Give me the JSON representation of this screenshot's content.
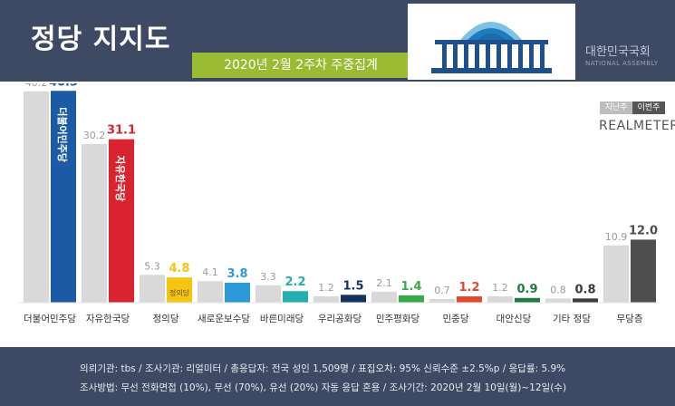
{
  "header": {
    "title": "정당 지지도",
    "subtitle": "2020년 2월 2주차 주중집계"
  },
  "assembly": {
    "name_ko": "대한민국국회",
    "name_en": "NATIONAL ASSEMBLY"
  },
  "legend": {
    "previous": "지난주",
    "current": "이번주",
    "brand": "REALMETER"
  },
  "colors": {
    "header_bg": "#3e4a64",
    "subtitle_bg": "#9abc32",
    "previous_bar": "#d9d9d9",
    "democratic": "#1c5aa6",
    "liberty_korea": "#d9232f",
    "justice": "#f5c512",
    "new_conservative": "#2b9ad6",
    "bareun_future": "#24aeb2",
    "our_republican": "#14335e",
    "minju_peace": "#3aa94a",
    "minjung": "#e3482b",
    "alternative_new": "#1f7a3f",
    "other": "#3a3a3a",
    "independent": "#4e4e4e"
  },
  "chart_data": {
    "type": "bar",
    "categories": [
      "더불어민주당",
      "자유한국당",
      "정의당",
      "새로운보수당",
      "바른미래당",
      "우리공화당",
      "민주평화당",
      "민중당",
      "대안신당",
      "기타 정당",
      "무당층"
    ],
    "series": [
      {
        "name": "지난주",
        "values": [
          40.2,
          30.2,
          5.3,
          4.1,
          3.3,
          1.2,
          2.1,
          0.7,
          1.2,
          0.8,
          10.9
        ]
      },
      {
        "name": "이번주",
        "values": [
          40.3,
          31.1,
          4.8,
          3.8,
          2.2,
          1.5,
          1.4,
          1.2,
          0.9,
          0.8,
          12.0
        ]
      }
    ],
    "value_labels": {
      "previous": [
        "40.2",
        "30.2",
        "5.3",
        "4.1",
        "3.3",
        "1.2",
        "2.1",
        "0.7",
        "1.2",
        "0.8",
        "10.9"
      ],
      "current": [
        "40.3",
        "31.1",
        "4.8",
        "3.8",
        "2.2",
        "1.5",
        "1.4",
        "1.2",
        "0.9",
        "0.8",
        "12.0"
      ]
    },
    "current_colors": [
      "#1c5aa6",
      "#d9232f",
      "#f5c512",
      "#2b9ad6",
      "#24aeb2",
      "#14335e",
      "#3aa94a",
      "#e3482b",
      "#1f7a3f",
      "#3a3a3a",
      "#4e4e4e"
    ],
    "bar_text": {
      "democratic": "더불어민주당",
      "liberty_korea": "자유한국당",
      "justice": "정의당"
    },
    "ylim": [
      0,
      45
    ],
    "grid": false,
    "legend_position": "top-right"
  },
  "footer": {
    "line1": "의뢰기관: tbs / 조사기관: 리얼미터 / 총응답자: 전국 성인 1,509명 / 표집오차: 95% 신뢰수준 ±2.5%p / 응답률: 5.9%",
    "line2": "조사방법: 무선 전화면접 (10%), 무선 (70%), 유선 (20%) 자동 응답 혼용 / 조사기간: 2020년 2월 10일(월)~12일(수)"
  }
}
